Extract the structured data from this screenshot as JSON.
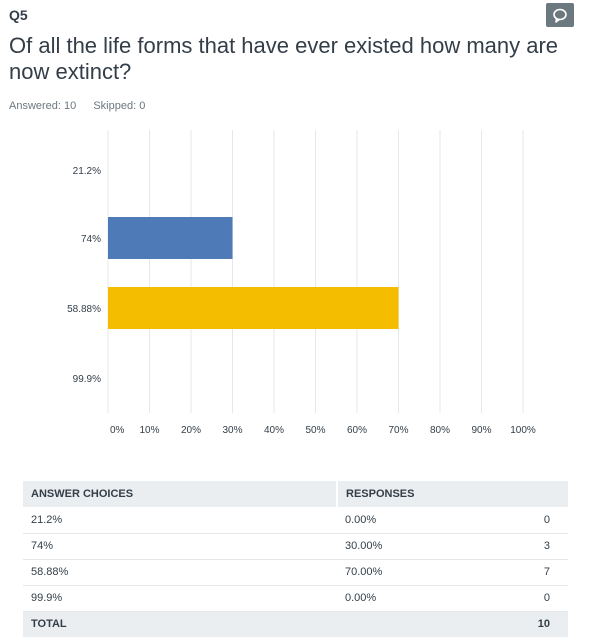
{
  "question": {
    "number": "Q5",
    "title": "Of all the life forms that have ever existed how many are now extinct?",
    "answered": "Answered: 10",
    "skipped": "Skipped: 0",
    "comment_icon": "speech-bubble-icon"
  },
  "colors": {
    "bar_blue": "#4f7ab8",
    "bar_yellow": "#f5bd00",
    "grid": "#e4e8ea",
    "header_bg": "#eaeef0",
    "comment_btn": "#6b787f"
  },
  "chart_data": {
    "type": "bar",
    "orientation": "horizontal",
    "categories": [
      "21.2%",
      "74%",
      "58.88%",
      "99.9%"
    ],
    "values": [
      0,
      30,
      70,
      0
    ],
    "bar_colors": [
      "#4f7ab8",
      "#4f7ab8",
      "#f5bd00",
      "#4f7ab8"
    ],
    "xlim": [
      0,
      100
    ],
    "xticks": [
      "0%",
      "10%",
      "20%",
      "30%",
      "40%",
      "50%",
      "60%",
      "70%",
      "80%",
      "90%",
      "100%"
    ],
    "grid": true
  },
  "table": {
    "headers": [
      "ANSWER CHOICES",
      "RESPONSES"
    ],
    "rows": [
      {
        "choice": "21.2%",
        "percent": "0.00%",
        "count": "0"
      },
      {
        "choice": "74%",
        "percent": "30.00%",
        "count": "3"
      },
      {
        "choice": "58.88%",
        "percent": "70.00%",
        "count": "7"
      },
      {
        "choice": "99.9%",
        "percent": "0.00%",
        "count": "0"
      }
    ],
    "total_label": "TOTAL",
    "total_count": "10"
  }
}
